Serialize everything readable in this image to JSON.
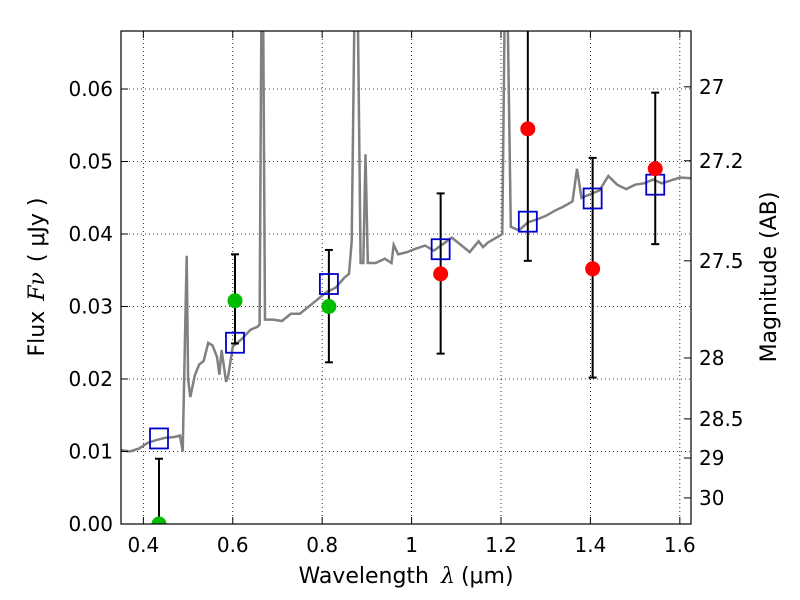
{
  "chart_data": {
    "type": "scatter",
    "xlabel_text": "Wavelength",
    "xlabel_symbol": "λ",
    "xlabel_unit": "(μm)",
    "ylabel_text": "Flux",
    "ylabel_symbol": "Fν",
    "ylabel_unit": "( μJy )",
    "y2label": "Magnitude (AB)",
    "xlim": [
      0.35,
      1.625
    ],
    "ylim": [
      0.0,
      0.068
    ],
    "grid": true,
    "x_ticks": [
      {
        "value": 0.4,
        "label": "0.4"
      },
      {
        "value": 0.6,
        "label": "0.6"
      },
      {
        "value": 0.8,
        "label": "0.8"
      },
      {
        "value": 1.0,
        "label": "1"
      },
      {
        "value": 1.2,
        "label": "1.2"
      },
      {
        "value": 1.4,
        "label": "1.4"
      },
      {
        "value": 1.6,
        "label": "1.6"
      }
    ],
    "y_ticks": [
      {
        "value": 0.0,
        "label": "0.00"
      },
      {
        "value": 0.01,
        "label": "0.01"
      },
      {
        "value": 0.02,
        "label": "0.02"
      },
      {
        "value": 0.03,
        "label": "0.03"
      },
      {
        "value": 0.04,
        "label": "0.04"
      },
      {
        "value": 0.05,
        "label": "0.05"
      },
      {
        "value": 0.06,
        "label": "0.06"
      }
    ],
    "y2_ticks": [
      {
        "flux": 0.0603,
        "label": "27"
      },
      {
        "flux": 0.0501,
        "label": "27.2"
      },
      {
        "flux": 0.0363,
        "label": "27.5"
      },
      {
        "flux": 0.0229,
        "label": "28"
      },
      {
        "flux": 0.0145,
        "label": "28.5"
      },
      {
        "flux": 0.0091,
        "label": "29"
      },
      {
        "flux": 0.0036,
        "label": "30"
      }
    ],
    "spectrum": {
      "color": "#808080",
      "points": [
        [
          0.35,
          0.0102
        ],
        [
          0.37,
          0.01
        ],
        [
          0.39,
          0.0104
        ],
        [
          0.41,
          0.0112
        ],
        [
          0.43,
          0.0116
        ],
        [
          0.45,
          0.0119
        ],
        [
          0.47,
          0.012
        ],
        [
          0.482,
          0.0122
        ],
        [
          0.488,
          0.01
        ],
        [
          0.493,
          0.025
        ],
        [
          0.497,
          0.037
        ],
        [
          0.5,
          0.02
        ],
        [
          0.505,
          0.0175
        ],
        [
          0.515,
          0.0205
        ],
        [
          0.525,
          0.022
        ],
        [
          0.535,
          0.0225
        ],
        [
          0.545,
          0.025
        ],
        [
          0.555,
          0.0246
        ],
        [
          0.565,
          0.023
        ],
        [
          0.57,
          0.0206
        ],
        [
          0.575,
          0.024
        ],
        [
          0.585,
          0.0196
        ],
        [
          0.59,
          0.0205
        ],
        [
          0.6,
          0.0245
        ],
        [
          0.62,
          0.0255
        ],
        [
          0.64,
          0.0268
        ],
        [
          0.655,
          0.0272
        ],
        [
          0.66,
          0.0275
        ],
        [
          0.664,
          0.07
        ],
        [
          0.668,
          0.07
        ],
        [
          0.672,
          0.0282
        ],
        [
          0.69,
          0.0282
        ],
        [
          0.71,
          0.028
        ],
        [
          0.73,
          0.029
        ],
        [
          0.75,
          0.029
        ],
        [
          0.77,
          0.03
        ],
        [
          0.79,
          0.031
        ],
        [
          0.81,
          0.032
        ],
        [
          0.83,
          0.0326
        ],
        [
          0.85,
          0.034
        ],
        [
          0.86,
          0.0345
        ],
        [
          0.866,
          0.039
        ],
        [
          0.872,
          0.07
        ],
        [
          0.88,
          0.07
        ],
        [
          0.886,
          0.036
        ],
        [
          0.892,
          0.036
        ],
        [
          0.897,
          0.051
        ],
        [
          0.902,
          0.036
        ],
        [
          0.92,
          0.036
        ],
        [
          0.94,
          0.0366
        ],
        [
          0.955,
          0.036
        ],
        [
          0.96,
          0.0385
        ],
        [
          0.97,
          0.0372
        ],
        [
          0.99,
          0.0375
        ],
        [
          1.01,
          0.038
        ],
        [
          1.03,
          0.0384
        ],
        [
          1.05,
          0.0377
        ],
        [
          1.07,
          0.0386
        ],
        [
          1.09,
          0.0395
        ],
        [
          1.11,
          0.0385
        ],
        [
          1.13,
          0.0375
        ],
        [
          1.15,
          0.039
        ],
        [
          1.16,
          0.0382
        ],
        [
          1.17,
          0.0388
        ],
        [
          1.19,
          0.0395
        ],
        [
          1.203,
          0.04
        ],
        [
          1.208,
          0.07
        ],
        [
          1.215,
          0.07
        ],
        [
          1.222,
          0.041
        ],
        [
          1.24,
          0.0405
        ],
        [
          1.26,
          0.0416
        ],
        [
          1.28,
          0.042
        ],
        [
          1.3,
          0.0425
        ],
        [
          1.32,
          0.0432
        ],
        [
          1.34,
          0.0438
        ],
        [
          1.36,
          0.0445
        ],
        [
          1.37,
          0.049
        ],
        [
          1.38,
          0.045
        ],
        [
          1.4,
          0.0455
        ],
        [
          1.42,
          0.046
        ],
        [
          1.44,
          0.048
        ],
        [
          1.46,
          0.0468
        ],
        [
          1.48,
          0.0462
        ],
        [
          1.5,
          0.0468
        ],
        [
          1.52,
          0.047
        ],
        [
          1.54,
          0.0475
        ],
        [
          1.56,
          0.047
        ],
        [
          1.58,
          0.0474
        ],
        [
          1.6,
          0.0478
        ],
        [
          1.625,
          0.0477
        ]
      ]
    },
    "series": [
      {
        "marker": "square-open",
        "color": "#0000cc",
        "points": [
          [
            0.435,
            0.0118
          ],
          [
            0.605,
            0.025
          ],
          [
            0.815,
            0.0331
          ],
          [
            1.065,
            0.0379
          ],
          [
            1.26,
            0.0417
          ],
          [
            1.405,
            0.0449
          ],
          [
            1.545,
            0.0468
          ]
        ]
      },
      {
        "marker": "circle",
        "color": "#00bb00",
        "points": [
          {
            "x": 0.435,
            "y": 0.0,
            "err_low": 0.0,
            "err_high": 0.009
          },
          {
            "x": 0.605,
            "y": 0.0308,
            "err_low": 0.0059,
            "err_high": 0.0064
          },
          {
            "x": 0.815,
            "y": 0.03,
            "err_low": 0.0077,
            "err_high": 0.0078
          }
        ]
      },
      {
        "marker": "circle",
        "color": "#ff0000",
        "points": [
          {
            "x": 1.065,
            "y": 0.0345,
            "err_low": 0.011,
            "err_high": 0.0111
          },
          {
            "x": 1.26,
            "y": 0.0545,
            "err_low": 0.0182,
            "err_high": 0.019
          },
          {
            "x": 1.405,
            "y": 0.0352,
            "err_low": 0.015,
            "err_high": 0.0153
          },
          {
            "x": 1.545,
            "y": 0.049,
            "err_low": 0.0104,
            "err_high": 0.0105
          }
        ]
      }
    ]
  }
}
